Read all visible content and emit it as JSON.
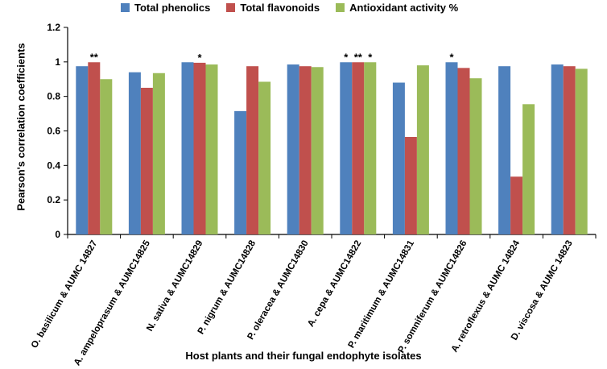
{
  "chart_data": {
    "type": "bar",
    "title": "",
    "xlabel": "Host plants and their fungal endophyte isolates",
    "ylabel": "Pearson's correlation coefficients",
    "ylim": [
      0,
      1.2
    ],
    "yticks": [
      "0",
      "0.2",
      "0.4",
      "0.6",
      "0.8",
      "1",
      "1.2"
    ],
    "categories": [
      "O. basilicum & AUMC 14827",
      "A. ampeloprasum & AUMC14825",
      "N. sativa & AUMC14829",
      "P. nigrum & AUMC14828",
      "P. oleracea & AUMC14830",
      "A. cepa & AUMC14822",
      "P. maritimum & AUMC14831",
      "P. somniferum & AUMC14826",
      "A. retroflexus & AUMC 14824",
      "D. viscosa & AUMC 14823"
    ],
    "series": [
      {
        "name": "Total phenolics",
        "color": "#4F81BD",
        "values": [
          0.975,
          0.94,
          0.998,
          0.715,
          0.985,
          0.998,
          0.88,
          0.998,
          0.975,
          0.985
        ],
        "marks": [
          "",
          "",
          "",
          "",
          "",
          "*",
          "",
          "*",
          "",
          ""
        ]
      },
      {
        "name": "Total flavonoids",
        "color": "#C0504D",
        "values": [
          0.998,
          0.85,
          0.995,
          0.975,
          0.975,
          0.998,
          0.565,
          0.965,
          0.335,
          0.975
        ],
        "marks": [
          "**",
          "",
          "*",
          "",
          "",
          "**",
          "",
          "",
          "",
          ""
        ]
      },
      {
        "name": "Antioxidant activity %",
        "color": "#9BBB59",
        "values": [
          0.9,
          0.935,
          0.985,
          0.885,
          0.97,
          0.998,
          0.98,
          0.905,
          0.755,
          0.96
        ],
        "marks": [
          "",
          "",
          "",
          "",
          "",
          "*",
          "",
          "",
          "",
          ""
        ]
      }
    ],
    "grid": false,
    "legend": "top"
  }
}
